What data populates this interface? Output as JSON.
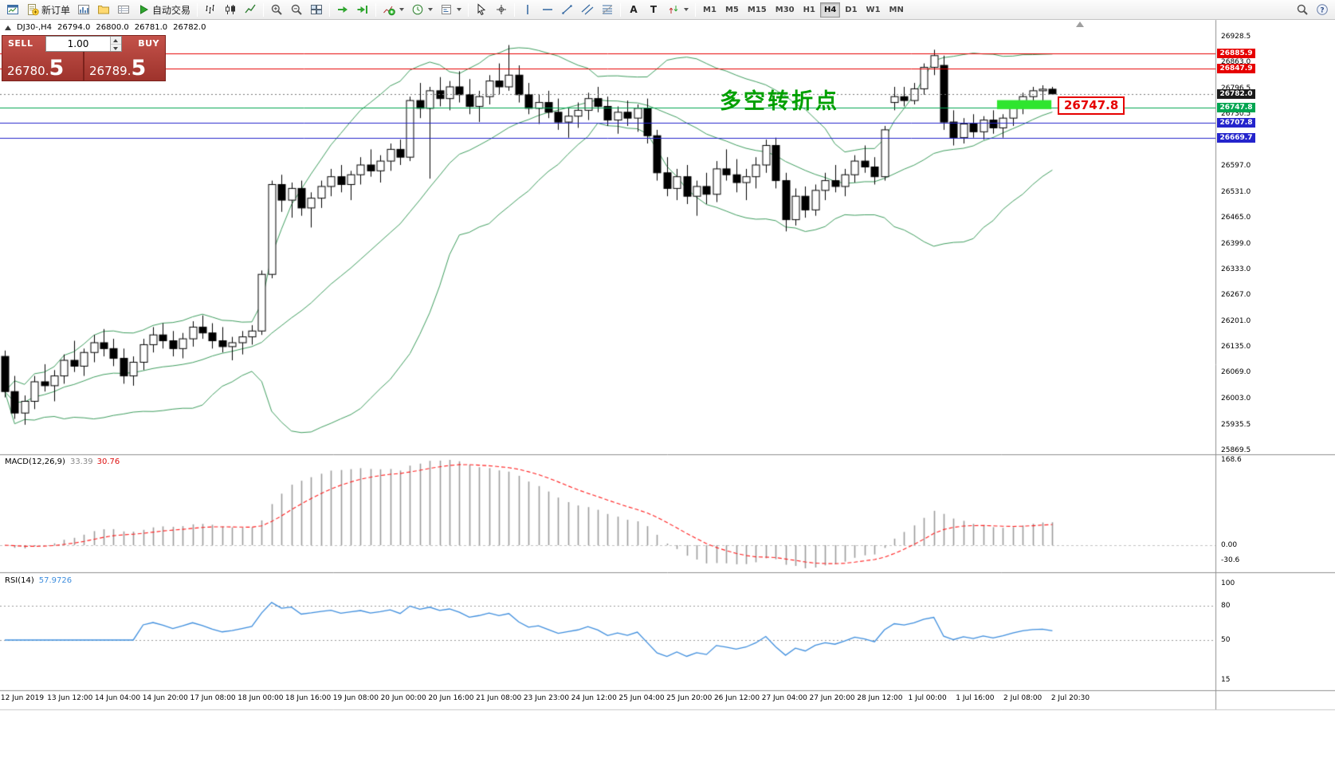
{
  "colors": {
    "accent_red": "#e60000",
    "annotation_green": "#00a000",
    "trade_widget_red_light": "#c4524a",
    "trade_widget_red_dark": "#9e332c",
    "highlight_green": "#2fe52f",
    "candle_up": "#ffffff",
    "candle_down": "#000000",
    "candle_border": "#000000",
    "line_colors": {
      "red": "#e60000",
      "green": "#00a550",
      "blue": "#2424cc",
      "black": "#1a1a1a"
    }
  },
  "toolbar": {
    "groups": [
      [
        {
          "name": "app-window"
        },
        {
          "name": "new-order",
          "label": "新订单"
        },
        {
          "name": "market-watch"
        },
        {
          "name": "navigator"
        },
        {
          "name": "terminal"
        },
        {
          "name": "autotrading",
          "label": "自动交易"
        }
      ],
      [
        {
          "name": "chart-bars"
        },
        {
          "name": "chart-candles"
        },
        {
          "name": "chart-line"
        }
      ],
      [
        {
          "name": "zoom-in"
        },
        {
          "name": "zoom-out"
        },
        {
          "name": "tile-windows"
        }
      ],
      [
        {
          "name": "auto-scroll"
        },
        {
          "name": "chart-shift"
        }
      ],
      [
        {
          "name": "indicators",
          "caret": true
        },
        {
          "name": "periods",
          "caret": true
        },
        {
          "name": "templates",
          "caret": true
        }
      ],
      [
        {
          "name": "cursor"
        },
        {
          "name": "crosshair"
        }
      ],
      [
        {
          "name": "vertical-line"
        },
        {
          "name": "horizontal-line"
        },
        {
          "name": "trendline"
        },
        {
          "name": "channel"
        },
        {
          "name": "fibonacci"
        }
      ],
      [
        {
          "name": "text"
        },
        {
          "name": "text-label"
        },
        {
          "name": "arrows",
          "caret": true
        }
      ]
    ],
    "timeframes": [
      "M1",
      "M5",
      "M15",
      "M30",
      "H1",
      "H4",
      "D1",
      "W1",
      "MN"
    ],
    "active_timeframe": "H4",
    "right_buttons": [
      {
        "name": "search"
      },
      {
        "name": "help"
      }
    ]
  },
  "chart_header": {
    "symbol": "DJ30-,H4",
    "open": "26794.0",
    "high": "26800.0",
    "low": "26781.0",
    "close": "26782.0"
  },
  "trade_panel": {
    "sell_label": "SELL",
    "buy_label": "BUY",
    "volume": "1.00",
    "sell_price_main": "26780.",
    "sell_price_big": "5",
    "buy_price_main": "26789.",
    "buy_price_big": "5"
  },
  "annotation": {
    "text": "多空转折点"
  },
  "highlight": {
    "label": "26747.8",
    "bar_start": 100.4,
    "bar_end": 105.9,
    "price_top": 26766,
    "price_bottom": 26743
  },
  "chart_data": {
    "type": "candlestick",
    "symbol": "DJ30-",
    "timeframe": "H4",
    "ohlc_current": {
      "open": 26794.0,
      "high": 26800.0,
      "low": 26781.0,
      "close": 26782.0
    },
    "candles": [
      [
        26110,
        26125,
        26005,
        26020
      ],
      [
        26020,
        26060,
        25950,
        25965
      ],
      [
        25965,
        26010,
        25935,
        25995
      ],
      [
        25995,
        26060,
        25975,
        26045
      ],
      [
        26045,
        26090,
        26020,
        26035
      ],
      [
        26035,
        26075,
        25995,
        26060
      ],
      [
        26060,
        26115,
        26040,
        26100
      ],
      [
        26100,
        26150,
        26070,
        26085
      ],
      [
        26085,
        26130,
        26060,
        26120
      ],
      [
        26120,
        26165,
        26095,
        26145
      ],
      [
        26145,
        26180,
        26110,
        26130
      ],
      [
        26130,
        26155,
        26085,
        26105
      ],
      [
        26105,
        26130,
        26040,
        26060
      ],
      [
        26060,
        26110,
        26035,
        26095
      ],
      [
        26095,
        26155,
        26075,
        26140
      ],
      [
        26140,
        26185,
        26120,
        26165
      ],
      [
        26165,
        26195,
        26130,
        26150
      ],
      [
        26150,
        26175,
        26110,
        26130
      ],
      [
        26130,
        26170,
        26105,
        26155
      ],
      [
        26155,
        26200,
        26135,
        26185
      ],
      [
        26185,
        26215,
        26155,
        26170
      ],
      [
        26170,
        26195,
        26130,
        26150
      ],
      [
        26150,
        26185,
        26120,
        26135
      ],
      [
        26135,
        26160,
        26100,
        26145
      ],
      [
        26145,
        26175,
        26115,
        26160
      ],
      [
        26160,
        26190,
        26140,
        26175
      ],
      [
        26175,
        26330,
        26165,
        26320
      ],
      [
        26320,
        26560,
        26310,
        26550
      ],
      [
        26550,
        26575,
        26480,
        26510
      ],
      [
        26510,
        26555,
        26465,
        26540
      ],
      [
        26540,
        26560,
        26470,
        26490
      ],
      [
        26490,
        26530,
        26440,
        26515
      ],
      [
        26515,
        26560,
        26490,
        26545
      ],
      [
        26545,
        26590,
        26520,
        26570
      ],
      [
        26570,
        26600,
        26530,
        26550
      ],
      [
        26550,
        26585,
        26510,
        26575
      ],
      [
        26575,
        26620,
        26550,
        26600
      ],
      [
        26600,
        26640,
        26570,
        26585
      ],
      [
        26585,
        26625,
        26555,
        26610
      ],
      [
        26610,
        26655,
        26585,
        26640
      ],
      [
        26640,
        26665,
        26600,
        26620
      ],
      [
        26620,
        26775,
        26610,
        26765
      ],
      [
        26765,
        26810,
        26720,
        26745
      ],
      [
        26745,
        26800,
        26565,
        26790
      ],
      [
        26790,
        26825,
        26750,
        26770
      ],
      [
        26770,
        26815,
        26740,
        26800
      ],
      [
        26800,
        26840,
        26760,
        26780
      ],
      [
        26780,
        26820,
        26730,
        26750
      ],
      [
        26750,
        26790,
        26710,
        26775
      ],
      [
        26775,
        26830,
        26755,
        26815
      ],
      [
        26815,
        26860,
        26780,
        26800
      ],
      [
        26800,
        26907,
        26790,
        26830
      ],
      [
        26830,
        26855,
        26760,
        26780
      ],
      [
        26780,
        26810,
        26730,
        26745
      ],
      [
        26745,
        26780,
        26705,
        26760
      ],
      [
        26760,
        26790,
        26720,
        26735
      ],
      [
        26735,
        26770,
        26690,
        26710
      ],
      [
        26710,
        26745,
        26670,
        26725
      ],
      [
        26725,
        26760,
        26695,
        26740
      ],
      [
        26740,
        26785,
        26715,
        26770
      ],
      [
        26770,
        26800,
        26735,
        26750
      ],
      [
        26750,
        26775,
        26700,
        26715
      ],
      [
        26715,
        26750,
        26680,
        26735
      ],
      [
        26735,
        26765,
        26700,
        26720
      ],
      [
        26720,
        26755,
        26685,
        26745
      ],
      [
        26745,
        26770,
        26655,
        26675
      ],
      [
        26675,
        26690,
        26560,
        26580
      ],
      [
        26580,
        26620,
        26520,
        26540
      ],
      [
        26540,
        26590,
        26510,
        26570
      ],
      [
        26570,
        26600,
        26500,
        26520
      ],
      [
        26520,
        26560,
        26470,
        26545
      ],
      [
        26545,
        26580,
        26500,
        26525
      ],
      [
        26525,
        26610,
        26505,
        26590
      ],
      [
        26590,
        26640,
        26560,
        26575
      ],
      [
        26575,
        26615,
        26530,
        26555
      ],
      [
        26555,
        26590,
        26510,
        26570
      ],
      [
        26570,
        26620,
        26540,
        26600
      ],
      [
        26600,
        26665,
        26580,
        26650
      ],
      [
        26650,
        26670,
        26540,
        26560
      ],
      [
        26560,
        26580,
        26430,
        26460
      ],
      [
        26460,
        26540,
        26445,
        26520
      ],
      [
        26520,
        26545,
        26465,
        26485
      ],
      [
        26485,
        26550,
        26470,
        26535
      ],
      [
        26535,
        26580,
        26510,
        26560
      ],
      [
        26560,
        26600,
        26530,
        26545
      ],
      [
        26545,
        26590,
        26520,
        26575
      ],
      [
        26575,
        26625,
        26555,
        26610
      ],
      [
        26610,
        26650,
        26580,
        26595
      ],
      [
        26595,
        26620,
        26550,
        26570
      ],
      [
        26570,
        26700,
        26560,
        26690
      ],
      [
        26760,
        26800,
        26740,
        26775
      ],
      [
        26775,
        26800,
        26750,
        26765
      ],
      [
        26765,
        26810,
        26755,
        26795
      ],
      [
        26795,
        26860,
        26780,
        26850
      ],
      [
        26850,
        26895,
        26830,
        26880
      ],
      [
        26855,
        26880,
        26690,
        26710
      ],
      [
        26710,
        26740,
        26650,
        26670
      ],
      [
        26670,
        26720,
        26655,
        26705
      ],
      [
        26705,
        26730,
        26670,
        26685
      ],
      [
        26685,
        26725,
        26665,
        26715
      ],
      [
        26715,
        26740,
        26680,
        26695
      ],
      [
        26695,
        26730,
        26670,
        26720
      ],
      [
        26720,
        26760,
        26700,
        26750
      ],
      [
        26750,
        26785,
        26730,
        26775
      ],
      [
        26775,
        26800,
        26755,
        26790
      ],
      [
        26790,
        26804,
        26764,
        26794
      ],
      [
        26794,
        26800,
        26781,
        26782
      ]
    ],
    "indicators": {
      "bollinger": {
        "period": 20,
        "deviation": 2,
        "color": "#3f9e5f"
      },
      "macd": {
        "label": "MACD(12,26,9)",
        "value_main": "33.39",
        "value_signal": "30.76",
        "fast": 12,
        "slow": 26,
        "signal": 9,
        "histogram_color": "#9c9c9c",
        "signal_color": "#ff2020",
        "scale_labels": [
          "168.6",
          "0.00",
          "-30.6"
        ]
      },
      "rsi": {
        "label": "RSI(14)",
        "value": "57.9726",
        "period": 14,
        "color": "#3e8ede",
        "levels": [
          80,
          50
        ],
        "scale_labels": [
          {
            "v": 100,
            "label": "100"
          },
          {
            "v": 80,
            "label": "80"
          },
          {
            "v": 50,
            "label": "50"
          },
          {
            "v": 15,
            "label": "15"
          }
        ]
      }
    },
    "price_lines": [
      {
        "v": 26885.9,
        "label": "26885.9",
        "color": "red",
        "style": "solid"
      },
      {
        "v": 26847.9,
        "label": "26847.9",
        "color": "red",
        "style": "solid"
      },
      {
        "v": 26782.0,
        "label": "26782.0",
        "color": "black",
        "style": "dotted"
      },
      {
        "v": 26747.8,
        "label": "26747.8",
        "color": "green",
        "style": "solid"
      },
      {
        "v": 26707.8,
        "label": "26707.8",
        "color": "blue",
        "style": "solid"
      },
      {
        "v": 26669.7,
        "label": "26669.7",
        "color": "blue",
        "style": "solid"
      }
    ],
    "price_scale_ticks": [
      {
        "v": 26928.5,
        "label": "26928.5"
      },
      {
        "v": 26863.0,
        "label": "26863.0"
      },
      {
        "v": 26796.5,
        "label": "26796.5"
      },
      {
        "v": 26730.5,
        "label": "26730.5"
      },
      {
        "v": 26664.5,
        "label": "26664.5"
      },
      {
        "v": 26597.0,
        "label": "26597.0"
      },
      {
        "v": 26531.0,
        "label": "26531.0"
      },
      {
        "v": 26465.0,
        "label": "26465.0"
      },
      {
        "v": 26399.0,
        "label": "26399.0"
      },
      {
        "v": 26333.0,
        "label": "26333.0"
      },
      {
        "v": 26267.0,
        "label": "26267.0"
      },
      {
        "v": 26201.0,
        "label": "26201.0"
      },
      {
        "v": 26135.0,
        "label": "26135.0"
      },
      {
        "v": 26069.0,
        "label": "26069.0"
      },
      {
        "v": 26003.0,
        "label": "26003.0"
      },
      {
        "v": 25935.5,
        "label": "25935.5"
      },
      {
        "v": 25869.5,
        "label": "25869.5"
      }
    ],
    "time_labels": [
      "12 Jun 2019",
      "13 Jun 12:00",
      "14 Jun 04:00",
      "14 Jun 20:00",
      "17 Jun 08:00",
      "18 Jun 00:00",
      "18 Jun 16:00",
      "19 Jun 08:00",
      "20 Jun 00:00",
      "20 Jun 16:00",
      "21 Jun 08:00",
      "23 Jun 23:00",
      "24 Jun 12:00",
      "25 Jun 04:00",
      "25 Jun 20:00",
      "26 Jun 12:00",
      "27 Jun 04:00",
      "27 Jun 20:00",
      "28 Jun 12:00",
      "1 Jul 00:00",
      "1 Jul 16:00",
      "2 Jul 08:00",
      "2 Jul 20:30"
    ]
  }
}
